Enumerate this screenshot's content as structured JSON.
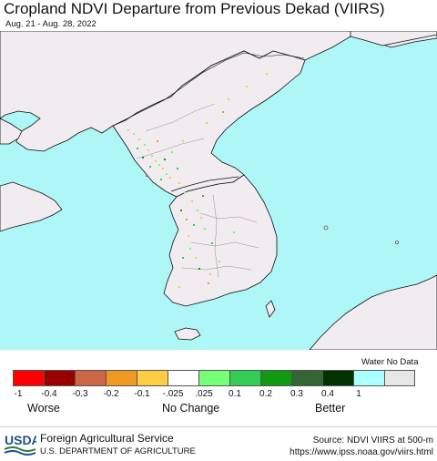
{
  "title": "Cropland NDVI Departure from Previous Dekad (VIIRS)",
  "subtitle": "Aug. 21 - Aug. 28, 2022",
  "colors": {
    "ocean": "#aef7f6",
    "land": "#f0ecf0",
    "border": "#111111"
  },
  "legend": {
    "swatches": [
      {
        "color": "#ff0000"
      },
      {
        "color": "#990000"
      },
      {
        "color": "#cc6644"
      },
      {
        "color": "#ee9922"
      },
      {
        "color": "#ffcc44"
      },
      {
        "color": "#ffffff"
      },
      {
        "color": "#77ff77"
      },
      {
        "color": "#33cc55"
      },
      {
        "color": "#119911"
      },
      {
        "color": "#336633"
      },
      {
        "color": "#003300"
      },
      {
        "color": "#aaffff"
      },
      {
        "color": "#e6e6e6"
      }
    ],
    "ticks": [
      "-1",
      "-0.4",
      "-0.3",
      "-0.2",
      "-0.1",
      "-.025",
      ".025",
      "0.1",
      "0.2",
      "0.3",
      "0.4",
      "1"
    ],
    "extra_label": "Water No Data",
    "worse": "Worse",
    "no_change": "No Change",
    "better": "Better"
  },
  "footer": {
    "logo_text": "USDA",
    "agency": "Foreign Agricultural Service",
    "department": "U.S. DEPARTMENT OF AGRICULTURE",
    "source": "Source: NDVI VIIRS at 500-m",
    "url": "https://www.ipss.noaa.gov/viirs.html"
  }
}
